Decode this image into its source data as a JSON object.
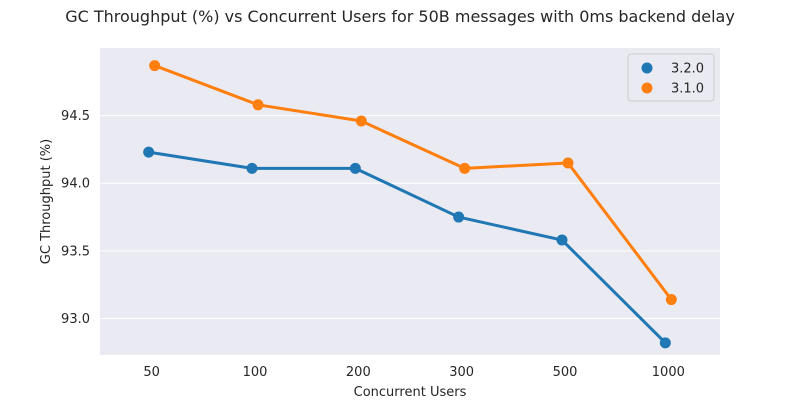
{
  "chart_data": {
    "type": "line",
    "title": "GC Throughput (%) vs Concurrent Users for 50B messages with 0ms backend delay",
    "xlabel": "Concurrent Users",
    "ylabel": "GC Throughput (%)",
    "categories": [
      "50",
      "100",
      "200",
      "300",
      "500",
      "1000"
    ],
    "yticks": [
      "93.0",
      "93.5",
      "94.0",
      "94.5"
    ],
    "ylim": [
      92.73,
      95.0
    ],
    "grid": true,
    "legend_position": "top-right",
    "series": [
      {
        "name": "3.2.0",
        "color": "#1f77b4",
        "values": [
          94.23,
          94.11,
          94.11,
          93.75,
          93.58,
          92.82
        ]
      },
      {
        "name": "3.1.0",
        "color": "#ff7f0e",
        "values": [
          94.87,
          94.58,
          94.46,
          94.11,
          94.15,
          93.14
        ]
      }
    ]
  }
}
